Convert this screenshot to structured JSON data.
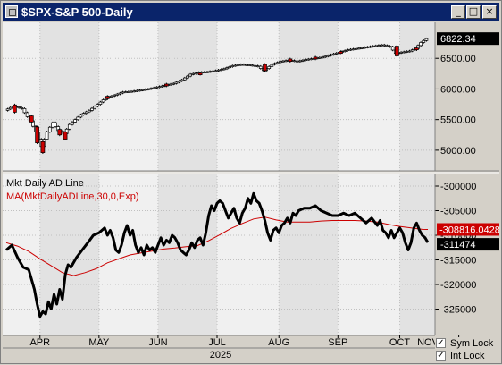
{
  "window": {
    "title": "$SPX-S&P 500-Daily",
    "buttons": {
      "minimize": "_",
      "maximize": "□",
      "close": "×"
    }
  },
  "colors": {
    "price_bg": "#f0f0f0",
    "band_bg": "#e2e2e2",
    "up_candle": "#ffffff",
    "down_candle": "#cc0000",
    "ad_line": "#000000",
    "ma_line": "#cc0000",
    "grid": "#c0c0c0"
  },
  "chart_data": [
    {
      "type": "candlestick",
      "title": "$SPX-S&P 500-Daily",
      "ylim": [
        4750,
        7000
      ],
      "yticks": [
        5000,
        5500,
        6000,
        6500
      ],
      "ytick_labels": [
        "5000.00",
        "5500.00",
        "6000.00",
        "6500.00"
      ],
      "last_value_label": "6822.34",
      "last_value": 6822.34,
      "xlim": [
        0,
        150
      ],
      "series": [
        {
          "name": "$SPX",
          "close_points": [
            [
              0,
              5650
            ],
            [
              3,
              5720
            ],
            [
              6,
              5680
            ],
            [
              9,
              5480
            ],
            [
              11,
              5300
            ],
            [
              13,
              5060
            ],
            [
              15,
              5300
            ],
            [
              17,
              5450
            ],
            [
              19,
              5320
            ],
            [
              21,
              5270
            ],
            [
              23,
              5420
            ],
            [
              25,
              5500
            ],
            [
              27,
              5580
            ],
            [
              30,
              5650
            ],
            [
              33,
              5750
            ],
            [
              36,
              5860
            ],
            [
              39,
              5900
            ],
            [
              42,
              5950
            ],
            [
              45,
              5960
            ],
            [
              48,
              5980
            ],
            [
              51,
              6000
            ],
            [
              54,
              6030
            ],
            [
              57,
              6060
            ],
            [
              60,
              6090
            ],
            [
              63,
              6150
            ],
            [
              66,
              6240
            ],
            [
              69,
              6270
            ],
            [
              72,
              6280
            ],
            [
              75,
              6300
            ],
            [
              78,
              6330
            ],
            [
              81,
              6380
            ],
            [
              84,
              6400
            ],
            [
              87,
              6390
            ],
            [
              90,
              6370
            ],
            [
              92,
              6300
            ],
            [
              95,
              6400
            ],
            [
              98,
              6450
            ],
            [
              101,
              6470
            ],
            [
              104,
              6450
            ],
            [
              107,
              6480
            ],
            [
              110,
              6500
            ],
            [
              113,
              6520
            ],
            [
              116,
              6560
            ],
            [
              119,
              6600
            ],
            [
              122,
              6640
            ],
            [
              125,
              6660
            ],
            [
              128,
              6680
            ],
            [
              131,
              6700
            ],
            [
              134,
              6720
            ],
            [
              137,
              6690
            ],
            [
              139,
              6580
            ],
            [
              141,
              6600
            ],
            [
              144,
              6620
            ],
            [
              146,
              6660
            ],
            [
              148,
              6760
            ],
            [
              150,
              6822
            ]
          ],
          "down_candles": [
            [
              3,
              5740,
              5620
            ],
            [
              9,
              5560,
              5460
            ],
            [
              11,
              5380,
              5120
            ],
            [
              13,
              5140,
              4960
            ],
            [
              19,
              5340,
              5250
            ],
            [
              21,
              5300,
              5180
            ],
            [
              36,
              5880,
              5840
            ],
            [
              57,
              6080,
              6050
            ],
            [
              69,
              6260,
              6240
            ],
            [
              92,
              6400,
              6300
            ],
            [
              101,
              6490,
              6450
            ],
            [
              110,
              6520,
              6490
            ],
            [
              119,
              6610,
              6590
            ],
            [
              139,
              6700,
              6540
            ],
            [
              146,
              6670,
              6640
            ]
          ]
        }
      ]
    },
    {
      "type": "line",
      "ylim": [
        -330000,
        -298000
      ],
      "yticks": [
        -325000,
        -320000,
        -315000,
        -310000,
        -305000,
        -300000
      ],
      "ytick_labels": [
        "-325000",
        "-320000",
        "-315000",
        "-310000",
        "-305000",
        "-300000"
      ],
      "xlim": [
        0,
        150
      ],
      "xtick_labels": [
        "APR",
        "MAY",
        "JUN",
        "JUL",
        "AUG",
        "SEP",
        "OCT",
        "NOV"
      ],
      "xtick_positions": [
        12,
        33,
        54,
        75,
        97,
        118,
        140,
        161
      ],
      "year_label": "2025",
      "series": [
        {
          "name": "Mkt Daily AD Line",
          "last_value_label": "-311474",
          "points": [
            [
              0,
              -313000
            ],
            [
              2,
              -312000
            ],
            [
              4,
              -314500
            ],
            [
              6,
              -316500
            ],
            [
              8,
              -317000
            ],
            [
              10,
              -321000
            ],
            [
              11,
              -324000
            ],
            [
              12,
              -326500
            ],
            [
              13,
              -325500
            ],
            [
              14,
              -326000
            ],
            [
              15,
              -323500
            ],
            [
              16,
              -325000
            ],
            [
              17,
              -322000
            ],
            [
              18,
              -324000
            ],
            [
              19,
              -321000
            ],
            [
              20,
              -323000
            ],
            [
              21,
              -318000
            ],
            [
              22,
              -316000
            ],
            [
              23,
              -316500
            ],
            [
              25,
              -314500
            ],
            [
              27,
              -313000
            ],
            [
              29,
              -311500
            ],
            [
              31,
              -310000
            ],
            [
              33,
              -309500
            ],
            [
              35,
              -308500
            ],
            [
              36,
              -310000
            ],
            [
              37,
              -309000
            ],
            [
              38,
              -310500
            ],
            [
              39,
              -313000
            ],
            [
              40,
              -313500
            ],
            [
              41,
              -312000
            ],
            [
              42,
              -309500
            ],
            [
              43,
              -308000
            ],
            [
              44,
              -310000
            ],
            [
              45,
              -309000
            ],
            [
              46,
              -312000
            ],
            [
              47,
              -313500
            ],
            [
              48,
              -312500
            ],
            [
              49,
              -314000
            ],
            [
              50,
              -312000
            ],
            [
              51,
              -313000
            ],
            [
              52,
              -312500
            ],
            [
              53,
              -313500
            ],
            [
              54,
              -312000
            ],
            [
              55,
              -310500
            ],
            [
              56,
              -312000
            ],
            [
              57,
              -311000
            ],
            [
              58,
              -311500
            ],
            [
              59,
              -310000
            ],
            [
              60,
              -310500
            ],
            [
              61,
              -311500
            ],
            [
              62,
              -313000
            ],
            [
              63,
              -313500
            ],
            [
              64,
              -314000
            ],
            [
              65,
              -313000
            ],
            [
              66,
              -311500
            ],
            [
              67,
              -312500
            ],
            [
              68,
              -311000
            ],
            [
              69,
              -310500
            ],
            [
              70,
              -312000
            ],
            [
              71,
              -309500
            ],
            [
              72,
              -306000
            ],
            [
              73,
              -304000
            ],
            [
              74,
              -305000
            ],
            [
              75,
              -303500
            ],
            [
              76,
              -303000
            ],
            [
              77,
              -303500
            ],
            [
              78,
              -305000
            ],
            [
              79,
              -306500
            ],
            [
              80,
              -305500
            ],
            [
              81,
              -304500
            ],
            [
              82,
              -306500
            ],
            [
              83,
              -307500
            ],
            [
              84,
              -305500
            ],
            [
              85,
              -304500
            ],
            [
              86,
              -302500
            ],
            [
              87,
              -303500
            ],
            [
              88,
              -301500
            ],
            [
              89,
              -303000
            ],
            [
              90,
              -303500
            ],
            [
              91,
              -305000
            ],
            [
              92,
              -307000
            ],
            [
              93,
              -309500
            ],
            [
              94,
              -311000
            ],
            [
              95,
              -309000
            ],
            [
              96,
              -308500
            ],
            [
              97,
              -309500
            ],
            [
              98,
              -308000
            ],
            [
              99,
              -307500
            ],
            [
              100,
              -306500
            ],
            [
              101,
              -307500
            ],
            [
              102,
              -305500
            ],
            [
              103,
              -306000
            ],
            [
              104,
              -305000
            ],
            [
              106,
              -304500
            ],
            [
              108,
              -304500
            ],
            [
              110,
              -304000
            ],
            [
              112,
              -305000
            ],
            [
              114,
              -305500
            ],
            [
              116,
              -306000
            ],
            [
              118,
              -306000
            ],
            [
              120,
              -305500
            ],
            [
              122,
              -306000
            ],
            [
              124,
              -305500
            ],
            [
              126,
              -306500
            ],
            [
              128,
              -307500
            ],
            [
              130,
              -306500
            ],
            [
              132,
              -308000
            ],
            [
              133,
              -307000
            ],
            [
              134,
              -309000
            ],
            [
              135,
              -309500
            ],
            [
              136,
              -310500
            ],
            [
              137,
              -309000
            ],
            [
              138,
              -310500
            ],
            [
              139,
              -309500
            ],
            [
              140,
              -308500
            ],
            [
              141,
              -309500
            ],
            [
              142,
              -311500
            ],
            [
              143,
              -313000
            ],
            [
              144,
              -311500
            ],
            [
              145,
              -308500
            ],
            [
              146,
              -307500
            ],
            [
              147,
              -309000
            ],
            [
              148,
              -310000
            ],
            [
              149,
              -310500
            ],
            [
              150,
              -311474
            ]
          ]
        },
        {
          "name": "MA(MktDailyADLine,30,0,Exp)",
          "last_value_label": "-308816.0428",
          "points": [
            [
              0,
              -311500
            ],
            [
              4,
              -312200
            ],
            [
              8,
              -313300
            ],
            [
              12,
              -314800
            ],
            [
              16,
              -316200
            ],
            [
              20,
              -317600
            ],
            [
              24,
              -318200
            ],
            [
              28,
              -317600
            ],
            [
              32,
              -316800
            ],
            [
              36,
              -315600
            ],
            [
              40,
              -314800
            ],
            [
              44,
              -314000
            ],
            [
              48,
              -313600
            ],
            [
              52,
              -313200
            ],
            [
              56,
              -312800
            ],
            [
              60,
              -312600
            ],
            [
              64,
              -312300
            ],
            [
              68,
              -312100
            ],
            [
              72,
              -311100
            ],
            [
              76,
              -309900
            ],
            [
              80,
              -308600
            ],
            [
              84,
              -307600
            ],
            [
              88,
              -306700
            ],
            [
              92,
              -306300
            ],
            [
              96,
              -306900
            ],
            [
              100,
              -307300
            ],
            [
              104,
              -307300
            ],
            [
              108,
              -307300
            ],
            [
              112,
              -307100
            ],
            [
              116,
              -307000
            ],
            [
              120,
              -307000
            ],
            [
              124,
              -307000
            ],
            [
              128,
              -307100
            ],
            [
              132,
              -307300
            ],
            [
              136,
              -307800
            ],
            [
              140,
              -308200
            ],
            [
              144,
              -308500
            ],
            [
              148,
              -308800
            ],
            [
              150,
              -308816
            ]
          ]
        }
      ]
    }
  ],
  "checkboxes": [
    {
      "label": "Sym Lock",
      "checked": true,
      "mark": "✓"
    },
    {
      "label": "Int Lock",
      "checked": true,
      "mark": "✓"
    }
  ]
}
